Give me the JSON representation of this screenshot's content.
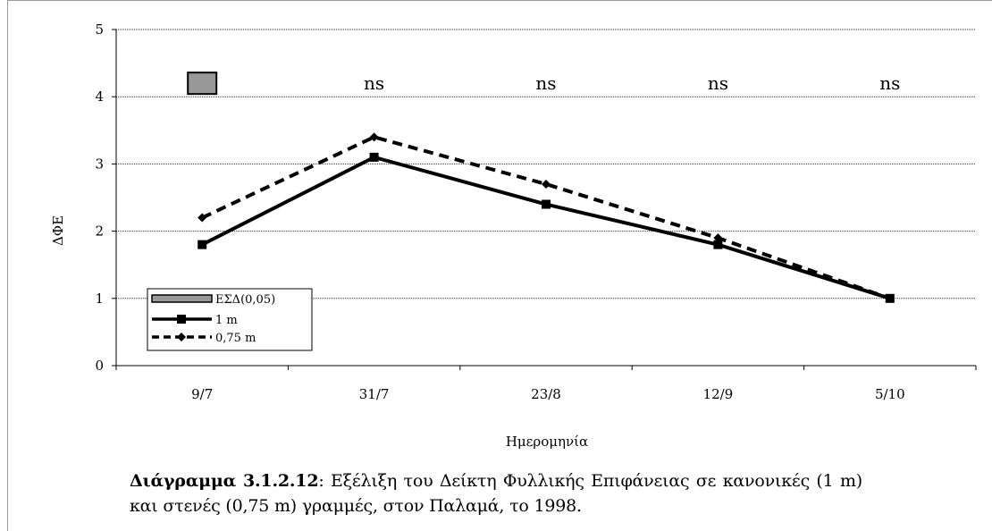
{
  "chart_data": {
    "type": "line",
    "categories": [
      "9/7",
      "31/7",
      "23/8",
      "12/9",
      "5/10"
    ],
    "ylabel": "ΔΦΕ",
    "xlabel": "Ημερομηνία",
    "ylim": [
      0,
      5
    ],
    "yticks": [
      "0",
      "1",
      "2",
      "3",
      "4",
      "5"
    ],
    "grid": true,
    "legend_position": "bottom-left",
    "series": [
      {
        "name": "1 m",
        "values": [
          1.8,
          3.1,
          2.4,
          1.8,
          1.0
        ],
        "style": "solid",
        "marker": "square",
        "color": "#000000"
      },
      {
        "name": "0,75 m",
        "values": [
          2.2,
          3.4,
          2.7,
          1.9,
          1.0
        ],
        "style": "dashed",
        "marker": "diamond",
        "color": "#000000"
      }
    ],
    "lsd": {
      "name": "ΕΣΔ(0,05)",
      "category": "9/7",
      "value": 4.2,
      "color": "#999999"
    },
    "significance_labels": [
      "",
      "ns",
      "ns",
      "ns",
      "ns"
    ]
  },
  "caption": {
    "label": "Διάγραμμα 3.1.2.12",
    "text": ": Εξέλιξη του Δείκτη Φυλλικής Επιφάνειας σε κανονικές (1 m)  και στενές (0,75 m) γραμμές, στον Παλαμά, το 1998."
  }
}
